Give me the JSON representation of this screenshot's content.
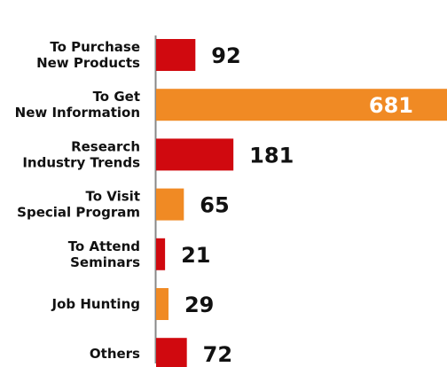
{
  "chart_data": {
    "type": "bar",
    "orientation": "horizontal",
    "categories": [
      [
        "To Purchase",
        "New Products"
      ],
      [
        "To Get",
        "New Information"
      ],
      [
        "Research",
        "Industry Trends"
      ],
      [
        "To Visit",
        "Special Program"
      ],
      [
        "To Attend",
        "Seminars"
      ],
      [
        "Job Hunting"
      ],
      [
        "Others"
      ]
    ],
    "values": [
      92,
      681,
      181,
      65,
      21,
      29,
      72
    ],
    "value_labels": [
      "92",
      "681",
      "181",
      "65",
      "21",
      "29",
      "72"
    ],
    "bar_colors": [
      "#d0090f",
      "#f08a24",
      "#d0090f",
      "#f08a24",
      "#d0090f",
      "#f08a24",
      "#d0090f"
    ],
    "colors": {
      "red": "#d0090f",
      "orange": "#f08a24",
      "axis": "#888888",
      "text": "#111111"
    },
    "title": "",
    "xlabel": "",
    "ylabel": "",
    "grid": false,
    "legend": "none",
    "xlim": [
      0,
      681
    ]
  }
}
